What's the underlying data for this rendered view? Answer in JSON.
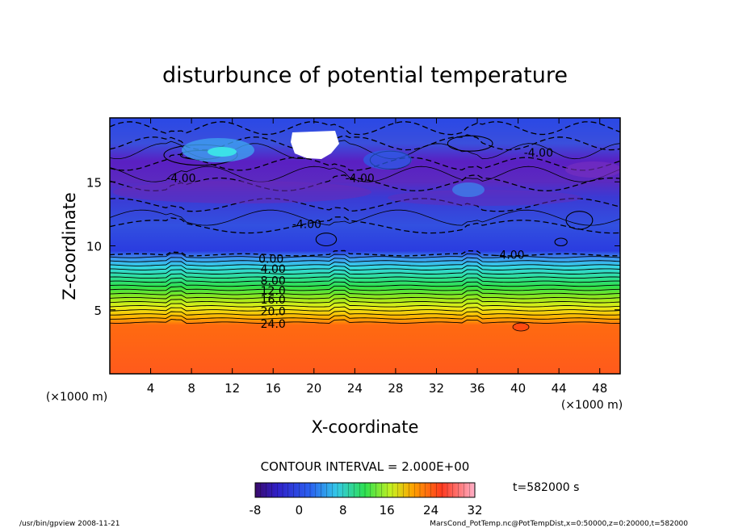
{
  "chart_data": {
    "type": "heatmap",
    "title": "disturbunce of potential temperature",
    "xlabel": "X-coordinate",
    "ylabel": "Z-coordinate",
    "x_unit_left": "(×1000 m)",
    "x_unit_right": "(×1000 m)",
    "xlim": [
      0,
      50
    ],
    "ylim": [
      0,
      20
    ],
    "x_ticks": [
      "4",
      "8",
      "12",
      "16",
      "20",
      "24",
      "28",
      "32",
      "36",
      "40",
      "44",
      "48"
    ],
    "y_ticks": [
      "5",
      "10",
      "15"
    ],
    "contour_interval": "CONTOUR INTERVAL = 2.000E+00",
    "time": "t=582000 s",
    "colorbar": {
      "min": -8,
      "max": 32,
      "ticks": [
        "-8",
        "0",
        "8",
        "16",
        "24",
        "32"
      ]
    },
    "contour_labels": [
      {
        "text": "0.00",
        "x": 15.8,
        "z": 9.0
      },
      {
        "text": "4.00",
        "x": 16.0,
        "z": 8.2
      },
      {
        "text": "8.00",
        "x": 16.0,
        "z": 7.3
      },
      {
        "text": "12.0",
        "x": 16.0,
        "z": 6.5
      },
      {
        "text": "16.0",
        "x": 16.0,
        "z": 5.8
      },
      {
        "text": "20.0",
        "x": 16.0,
        "z": 4.9
      },
      {
        "text": "24.0",
        "x": 16.0,
        "z": 3.9
      },
      {
        "text": "-4.00",
        "x": 7.0,
        "z": 15.3
      },
      {
        "text": "-4.00",
        "x": 24.5,
        "z": 15.3
      },
      {
        "text": "-4.00",
        "x": 42.0,
        "z": 17.3
      },
      {
        "text": "-4.00",
        "x": 19.3,
        "z": 11.7
      },
      {
        "text": "-4.00",
        "x": 39.2,
        "z": 9.3
      }
    ],
    "zones": [
      {
        "z0": 0.0,
        "z1": 3.8,
        "value": 25
      },
      {
        "z0": 3.8,
        "z1": 9.3,
        "value": "gradient"
      },
      {
        "z0": 9.3,
        "z1": 14.0,
        "value": -4
      },
      {
        "z0": 14.0,
        "z1": 16.5,
        "value": -6
      },
      {
        "z0": 16.5,
        "z1": 20.0,
        "value": -3
      }
    ],
    "grid": false,
    "legend": "colorbar-bottom"
  },
  "footer": {
    "left": "/usr/bin/gpview   2008-11-21",
    "right": "MarsCond_PotTemp.nc@PotTempDist,x=0:50000,z=0:20000,t=582000"
  }
}
